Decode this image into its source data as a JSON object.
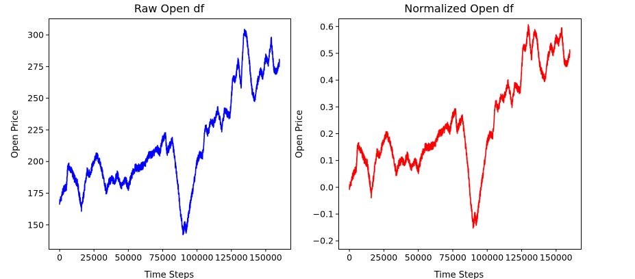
{
  "chart_data": [
    {
      "type": "line",
      "title": "Raw Open df",
      "xlabel": "Time Steps",
      "ylabel": "Open Price",
      "xlim": [
        -8000,
        168000
      ],
      "ylim": [
        131,
        313
      ],
      "xticks": [
        0,
        25000,
        50000,
        75000,
        100000,
        125000,
        150000
      ],
      "yticks": [
        150,
        175,
        200,
        225,
        250,
        275,
        300
      ],
      "grid": false,
      "series": [
        {
          "color": "#0000ff",
          "x": [
            0,
            3000,
            5000,
            6000,
            9000,
            11000,
            13000,
            14500,
            16000,
            18000,
            20000,
            22000,
            24000,
            27000,
            30000,
            33000,
            34000,
            36000,
            38000,
            40000,
            42000,
            45000,
            48000,
            50000,
            52000,
            55000,
            58000,
            62000,
            65000,
            68000,
            71000,
            73000,
            75000,
            77000,
            78000,
            80000,
            82000,
            84000,
            86000,
            88000,
            90000,
            91000,
            92000,
            93000,
            95000,
            97000,
            100000,
            102000,
            104000,
            106000,
            108000,
            110000,
            112000,
            115000,
            118000,
            120000,
            122000,
            124000,
            126000,
            128000,
            130000,
            132000,
            134000,
            136000,
            138000,
            140000,
            142000,
            144000,
            146000,
            148000,
            150000,
            152000,
            154000,
            156000,
            158000,
            160000
          ],
          "y": [
            168,
            178,
            180,
            197,
            192,
            186,
            183,
            172,
            163,
            178,
            192,
            190,
            197,
            205,
            197,
            181,
            176,
            184,
            186,
            184,
            190,
            180,
            186,
            179,
            188,
            195,
            195,
            198,
            205,
            206,
            210,
            207,
            218,
            222,
            207,
            212,
            217,
            200,
            183,
            160,
            143,
            151,
            146,
            152,
            166,
            178,
            200,
            206,
            204,
            228,
            222,
            232,
            230,
            241,
            226,
            240,
            238,
            236,
            265,
            265,
            280,
            258,
            302,
            300,
            280,
            256,
            248,
            262,
            272,
            267,
            283,
            278,
            297,
            273,
            271,
            278
          ]
        }
      ]
    },
    {
      "type": "line",
      "title": "Normalized Open df",
      "xlabel": "Time Steps",
      "ylabel": "Open Price",
      "xlim": [
        -8000,
        168000
      ],
      "ylim": [
        -0.23,
        0.63
      ],
      "xticks": [
        0,
        25000,
        50000,
        75000,
        100000,
        125000,
        150000
      ],
      "yticks": [
        -0.2,
        -0.1,
        0.0,
        0.1,
        0.2,
        0.3,
        0.4,
        0.5,
        0.6
      ],
      "grid": false,
      "series": [
        {
          "color": "#ff0000",
          "x": [
            0,
            3000,
            5000,
            6000,
            9000,
            11000,
            13000,
            14500,
            16000,
            18000,
            20000,
            22000,
            24000,
            27000,
            30000,
            33000,
            34000,
            36000,
            38000,
            40000,
            42000,
            45000,
            48000,
            50000,
            52000,
            55000,
            58000,
            62000,
            65000,
            68000,
            71000,
            73000,
            75000,
            77000,
            78000,
            80000,
            82000,
            84000,
            86000,
            88000,
            90000,
            91000,
            92000,
            93000,
            95000,
            97000,
            100000,
            102000,
            104000,
            106000,
            108000,
            110000,
            112000,
            115000,
            118000,
            120000,
            122000,
            124000,
            126000,
            128000,
            130000,
            132000,
            134000,
            136000,
            138000,
            140000,
            142000,
            144000,
            146000,
            148000,
            150000,
            152000,
            154000,
            156000,
            158000,
            160000
          ],
          "y": [
            0.0,
            0.05,
            0.07,
            0.16,
            0.13,
            0.1,
            0.09,
            0.03,
            -0.03,
            0.06,
            0.13,
            0.12,
            0.16,
            0.2,
            0.16,
            0.08,
            0.05,
            0.09,
            0.1,
            0.09,
            0.12,
            0.07,
            0.1,
            0.06,
            0.11,
            0.15,
            0.15,
            0.16,
            0.2,
            0.21,
            0.23,
            0.21,
            0.27,
            0.29,
            0.21,
            0.24,
            0.26,
            0.17,
            0.08,
            -0.05,
            -0.15,
            -0.1,
            -0.13,
            -0.1,
            -0.02,
            0.05,
            0.17,
            0.2,
            0.19,
            0.32,
            0.29,
            0.34,
            0.33,
            0.39,
            0.31,
            0.38,
            0.37,
            0.36,
            0.52,
            0.52,
            0.6,
            0.48,
            0.58,
            0.56,
            0.46,
            0.42,
            0.4,
            0.48,
            0.53,
            0.5,
            0.56,
            0.54,
            0.59,
            0.47,
            0.46,
            0.5
          ]
        }
      ]
    }
  ]
}
